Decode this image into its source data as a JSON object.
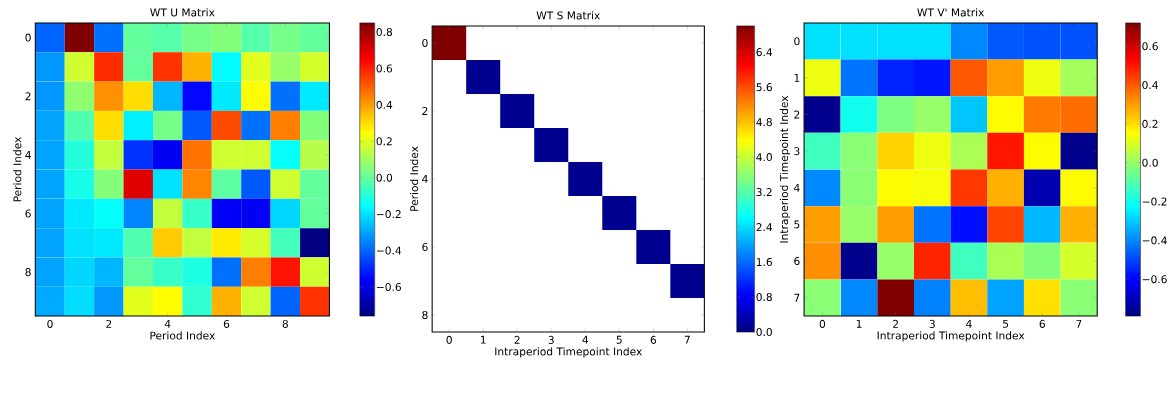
{
  "chart_data": [
    {
      "type": "heatmap",
      "title": "WT U Matrix",
      "xlabel": "Period Index",
      "ylabel": "Period Index",
      "categories": [
        "0",
        null,
        "2",
        null,
        "4",
        null,
        "6",
        null,
        "8",
        null
      ],
      "y_categories": [
        "0",
        null,
        "2",
        null,
        "4",
        null,
        "6",
        null,
        "8",
        null
      ],
      "cells": [
        [
          -0.4,
          0.85,
          -0.38,
          0.0,
          -0.02,
          0.03,
          0.05,
          -0.02,
          0.03,
          0.0
        ],
        [
          -0.32,
          0.17,
          0.58,
          0.0,
          0.57,
          0.37,
          -0.16,
          0.2,
          0.08,
          0.18
        ],
        [
          -0.32,
          0.07,
          0.42,
          0.3,
          -0.27,
          -0.55,
          -0.19,
          0.25,
          -0.38,
          -0.19
        ],
        [
          -0.3,
          -0.03,
          0.3,
          -0.18,
          0.03,
          -0.42,
          0.53,
          -0.38,
          0.45,
          0.05
        ],
        [
          -0.3,
          -0.1,
          0.15,
          -0.48,
          -0.58,
          0.47,
          0.17,
          0.17,
          -0.15,
          0.13
        ],
        [
          -0.3,
          -0.12,
          0.05,
          0.7,
          -0.2,
          0.44,
          -0.01,
          -0.42,
          0.17,
          0.0
        ],
        [
          -0.3,
          -0.19,
          -0.15,
          -0.35,
          0.15,
          -0.07,
          -0.57,
          -0.58,
          -0.22,
          0.0
        ],
        [
          -0.3,
          -0.2,
          -0.19,
          -0.03,
          0.33,
          0.15,
          0.28,
          0.18,
          -0.05,
          -0.76
        ],
        [
          -0.3,
          -0.22,
          -0.27,
          0.0,
          -0.07,
          -0.11,
          -0.38,
          0.45,
          0.62,
          0.17
        ],
        [
          -0.29,
          -0.21,
          -0.32,
          0.2,
          0.25,
          -0.08,
          0.37,
          0.17,
          -0.4,
          0.57
        ]
      ],
      "clim": [
        -0.76,
        0.85
      ],
      "cticks": [
        {
          "value": -0.6,
          "label": "−0.6"
        },
        {
          "value": -0.4,
          "label": "−0.4"
        },
        {
          "value": -0.2,
          "label": "−0.2"
        },
        {
          "value": 0.0,
          "label": "0.0"
        },
        0.2,
        0.4,
        0.6,
        0.8
      ]
    },
    {
      "type": "heatmap",
      "title": "WT S Matrix",
      "xlabel": "Intraperiod Timepoint Index",
      "ylabel": "Period Index",
      "categories": [
        "0",
        "1",
        "2",
        "3",
        "4",
        "5",
        "6",
        "7"
      ],
      "y_categories": [
        "0",
        null,
        "2",
        null,
        "4",
        null,
        "6",
        null,
        "8"
      ],
      "cells": [
        [
          7.0,
          null,
          null,
          null,
          null,
          null,
          null,
          null
        ],
        [
          null,
          0.1,
          null,
          null,
          null,
          null,
          null,
          null
        ],
        [
          null,
          null,
          0.1,
          null,
          null,
          null,
          null,
          null
        ],
        [
          null,
          null,
          null,
          0.1,
          null,
          null,
          null,
          null
        ],
        [
          null,
          null,
          null,
          null,
          0.1,
          null,
          null,
          null
        ],
        [
          null,
          null,
          null,
          null,
          null,
          0.1,
          null,
          null
        ],
        [
          null,
          null,
          null,
          null,
          null,
          null,
          0.1,
          null
        ],
        [
          null,
          null,
          null,
          null,
          null,
          null,
          null,
          0.1
        ],
        [
          null,
          null,
          null,
          null,
          null,
          null,
          null,
          null
        ]
      ],
      "clim": [
        0,
        7.0
      ],
      "cticks": [
        {
          "value": 0,
          "label": "0.0"
        },
        0.8,
        1.6,
        2.4,
        3.2,
        {
          "value": 4,
          "label": "4.0"
        },
        4.8,
        5.6,
        6.4
      ]
    },
    {
      "type": "heatmap",
      "title": "WT V' Matrix",
      "xlabel": "Intraperiod Timepoint Index",
      "ylabel": "Intraperiod Timepoint Index",
      "categories": [
        "0",
        "1",
        "2",
        "3",
        "4",
        "5",
        "6",
        "7"
      ],
      "y_categories": [
        "0",
        "1",
        "2",
        "3",
        "4",
        "5",
        "6",
        "7"
      ],
      "cells": [
        [
          -0.27,
          -0.27,
          -0.27,
          -0.27,
          -0.4,
          -0.47,
          -0.48,
          -0.48
        ],
        [
          0.13,
          -0.43,
          -0.55,
          -0.57,
          0.4,
          0.3,
          0.13,
          0.02
        ],
        [
          -0.77,
          -0.2,
          -0.04,
          0.0,
          -0.31,
          0.16,
          0.35,
          0.37
        ],
        [
          -0.13,
          -0.02,
          0.22,
          0.13,
          0.03,
          0.5,
          0.16,
          -0.77
        ],
        [
          -0.4,
          -0.02,
          0.16,
          0.14,
          0.45,
          0.27,
          -0.72,
          0.16
        ],
        [
          0.3,
          0.0,
          0.3,
          -0.43,
          -0.58,
          0.43,
          -0.33,
          0.27
        ],
        [
          0.32,
          -0.77,
          0.0,
          0.48,
          -0.13,
          0.03,
          -0.03,
          0.09
        ],
        [
          -0.02,
          -0.4,
          0.72,
          -0.41,
          0.25,
          -0.36,
          0.2,
          -0.02
        ]
      ],
      "clim": [
        -0.79,
        0.72
      ],
      "cticks": [
        {
          "value": -0.6,
          "label": "−0.6"
        },
        {
          "value": -0.4,
          "label": "−0.4"
        },
        {
          "value": -0.2,
          "label": "−0.2"
        },
        {
          "value": 0.0,
          "label": "0.0"
        },
        0.2,
        0.4,
        0.6
      ]
    }
  ]
}
